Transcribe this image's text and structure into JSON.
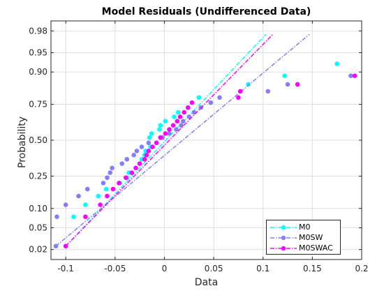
{
  "chart_data": {
    "type": "scatter",
    "title": "Model Residuals (Undifferenced Data)",
    "xlabel": "Data",
    "ylabel": "Probability",
    "xlim": [
      -0.115,
      0.2
    ],
    "x_ticks": [
      -0.1,
      -0.05,
      0,
      0.05,
      0.1,
      0.15,
      0.2
    ],
    "x_tick_labels": [
      "-0.1",
      "-0.05",
      "0",
      "0.05",
      "0.1",
      "0.15",
      "0.2"
    ],
    "y_scale": "normal-probability",
    "ylim": [
      0.0125,
      0.9875
    ],
    "y_ticks": [
      0.02,
      0.05,
      0.1,
      0.25,
      0.5,
      0.75,
      0.9,
      0.95,
      0.98
    ],
    "y_tick_labels": [
      "0.02",
      "0.05",
      "0.10",
      "0.25",
      "0.50",
      "0.75",
      "0.90",
      "0.95",
      "0.98"
    ],
    "grid": true,
    "legend_position": "bottom-right",
    "series": [
      {
        "name": "M0",
        "color": "#00ffff",
        "line_style": "dash-dot",
        "marker": "circle",
        "points": [
          [
            -0.1,
            0.0233
          ],
          [
            -0.092,
            0.0752
          ],
          [
            -0.08,
            0.1126
          ],
          [
            -0.067,
            0.1469
          ],
          [
            -0.059,
            0.1793
          ],
          [
            -0.045,
            0.2106
          ],
          [
            -0.038,
            0.241
          ],
          [
            -0.036,
            0.271
          ],
          [
            -0.029,
            0.301
          ],
          [
            -0.025,
            0.33
          ],
          [
            -0.023,
            0.36
          ],
          [
            -0.02,
            0.39
          ],
          [
            -0.019,
            0.42
          ],
          [
            -0.014,
            0.45
          ],
          [
            -0.008,
            0.48
          ],
          [
            -0.015,
            0.52
          ],
          [
            -0.013,
            0.55
          ],
          [
            -0.005,
            0.58
          ],
          [
            -0.004,
            0.61
          ],
          [
            0.001,
            0.64
          ],
          [
            0.01,
            0.67
          ],
          [
            0.014,
            0.7
          ],
          [
            0.024,
            0.73
          ],
          [
            0.028,
            0.76
          ],
          [
            0.035,
            0.789
          ],
          [
            0.077,
            0.821
          ],
          [
            0.085,
            0.853
          ],
          [
            0.122,
            0.887
          ],
          [
            0.175,
            0.9246
          ]
        ],
        "fit_line": [
          [
            -0.1,
            0.0233
          ],
          [
            0.103,
            0.9767
          ]
        ]
      },
      {
        "name": "M0SW",
        "color": "#8080ff",
        "line_style": "dash-dot",
        "marker": "circle",
        "points": [
          [
            -0.11,
            0.0233
          ],
          [
            -0.109,
            0.0752
          ],
          [
            -0.1,
            0.1126
          ],
          [
            -0.087,
            0.1469
          ],
          [
            -0.078,
            0.1793
          ],
          [
            -0.062,
            0.2106
          ],
          [
            -0.058,
            0.241
          ],
          [
            -0.055,
            0.271
          ],
          [
            -0.053,
            0.301
          ],
          [
            -0.043,
            0.33
          ],
          [
            -0.038,
            0.36
          ],
          [
            -0.031,
            0.39
          ],
          [
            -0.028,
            0.42
          ],
          [
            -0.023,
            0.45
          ],
          [
            -0.016,
            0.48
          ],
          [
            -0.002,
            0.52
          ],
          [
            0.005,
            0.55
          ],
          [
            0.012,
            0.58
          ],
          [
            0.017,
            0.61
          ],
          [
            0.019,
            0.64
          ],
          [
            0.025,
            0.67
          ],
          [
            0.03,
            0.7
          ],
          [
            0.037,
            0.73
          ],
          [
            0.047,
            0.76
          ],
          [
            0.056,
            0.789
          ],
          [
            0.105,
            0.821
          ],
          [
            0.125,
            0.853
          ],
          [
            0.189,
            0.887
          ]
        ],
        "fit_line": [
          [
            -0.11,
            0.0233
          ],
          [
            0.147,
            0.9767
          ]
        ]
      },
      {
        "name": "M0SWAC",
        "color": "#ff00ff",
        "line_style": "dash-dot",
        "marker": "circle",
        "points": [
          [
            -0.1,
            0.0233
          ],
          [
            -0.08,
            0.0752
          ],
          [
            -0.065,
            0.1126
          ],
          [
            -0.058,
            0.1469
          ],
          [
            -0.052,
            0.1793
          ],
          [
            -0.046,
            0.2106
          ],
          [
            -0.039,
            0.241
          ],
          [
            -0.033,
            0.271
          ],
          [
            -0.029,
            0.301
          ],
          [
            -0.025,
            0.33
          ],
          [
            -0.02,
            0.36
          ],
          [
            -0.018,
            0.39
          ],
          [
            -0.016,
            0.42
          ],
          [
            -0.012,
            0.45
          ],
          [
            -0.008,
            0.48
          ],
          [
            -0.004,
            0.52
          ],
          [
            0.001,
            0.55
          ],
          [
            0.005,
            0.58
          ],
          [
            0.009,
            0.61
          ],
          [
            0.013,
            0.64
          ],
          [
            0.016,
            0.67
          ],
          [
            0.02,
            0.7
          ],
          [
            0.024,
            0.73
          ],
          [
            0.028,
            0.76
          ],
          [
            0.075,
            0.789
          ],
          [
            0.077,
            0.821
          ],
          [
            0.135,
            0.853
          ],
          [
            0.193,
            0.887
          ]
        ],
        "fit_line": [
          [
            -0.1,
            0.0233
          ],
          [
            0.11,
            0.9767
          ]
        ]
      }
    ]
  }
}
